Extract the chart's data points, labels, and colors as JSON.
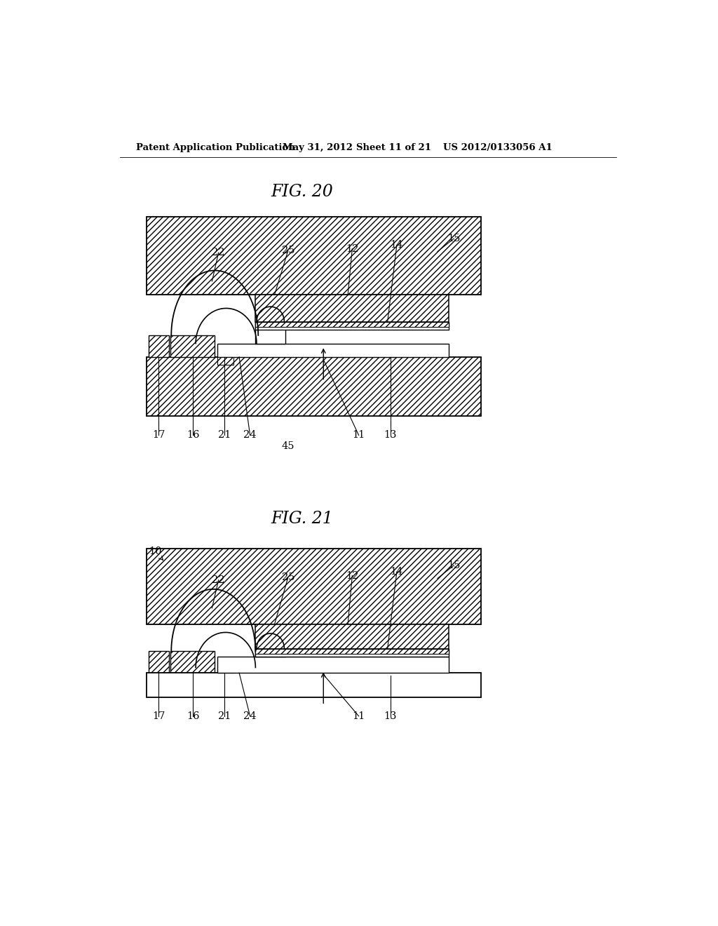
{
  "bg_color": "#ffffff",
  "header_text": "Patent Application Publication",
  "header_date": "May 31, 2012",
  "header_sheet": "Sheet 11 of 21",
  "header_patent": "US 2012/0133056 A1",
  "fig20_title": "FIG. 20",
  "fig21_title": "FIG. 21",
  "line_color": "#000000"
}
